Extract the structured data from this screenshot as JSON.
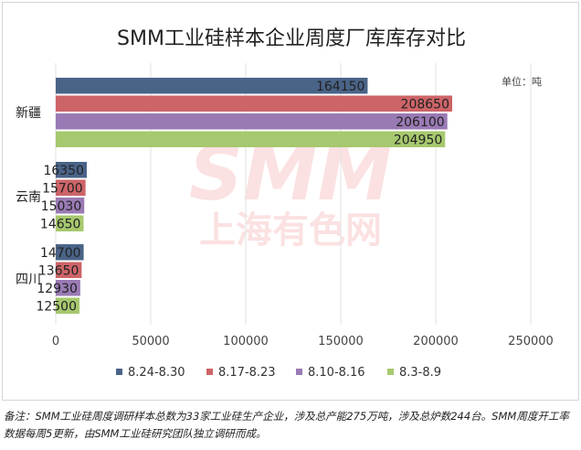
{
  "chart_data": {
    "type": "bar",
    "orientation": "horizontal",
    "title": "SMM工业硅样本企业周度厂库库存对比",
    "unit_label": "单位：吨",
    "categories": [
      "新疆",
      "云南",
      "四川"
    ],
    "series": [
      {
        "name": "8.24-8.30",
        "color": "#4a6488",
        "values": [
          164150,
          16350,
          14700
        ]
      },
      {
        "name": "8.17-8.23",
        "color": "#cd6468",
        "values": [
          208650,
          15700,
          13650
        ]
      },
      {
        "name": "8.10-8.16",
        "color": "#9a7ab4",
        "values": [
          206100,
          15030,
          12930
        ]
      },
      {
        "name": "8.3-8.9",
        "color": "#a6c86e",
        "values": [
          204950,
          14650,
          12500
        ]
      }
    ],
    "xlim": [
      0,
      250000
    ],
    "xticks": [
      0,
      50000,
      100000,
      150000,
      200000,
      250000
    ],
    "grid": true,
    "legend_position": "bottom"
  },
  "watermark": {
    "line1": "SMM",
    "line2": "上海有色网",
    "color": "#e84c4c"
  },
  "footnote": "备注：SMM工业硅周度调研样本总数为33家工业硅生产企业，涉及总产能275万吨，涉及总炉数244台。SMM周度开工率数据每周5更新，由SMM工业硅研究团队独立调研而成。"
}
